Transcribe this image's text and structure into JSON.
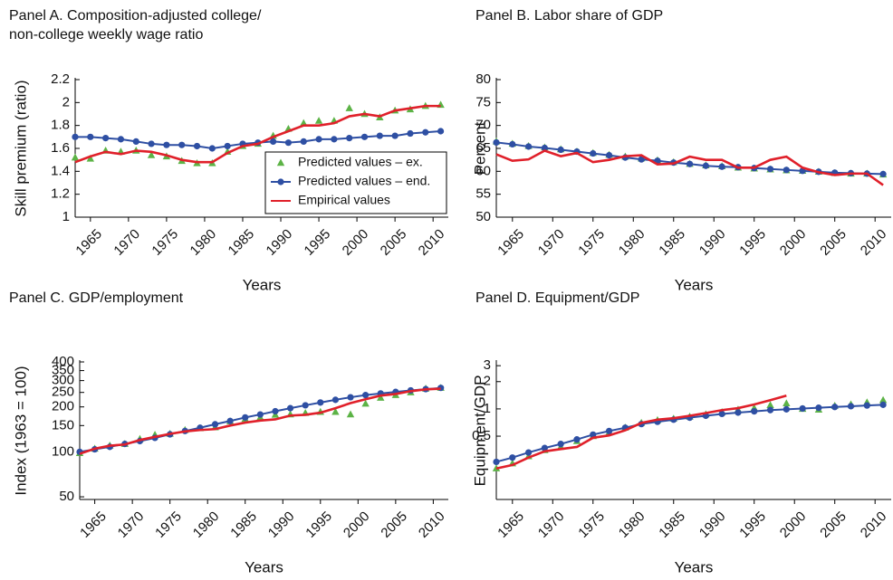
{
  "chart_data": [
    {
      "type": "line",
      "title": [
        "Panel A. Composition-adjusted college/",
        "non-college weekly wage ratio"
      ],
      "ylabel": "Skill premium (ratio)",
      "xlabel": "Years",
      "x": [
        1963,
        1965,
        1967,
        1969,
        1971,
        1973,
        1975,
        1977,
        1979,
        1981,
        1983,
        1985,
        1987,
        1989,
        1991,
        1993,
        1995,
        1997,
        1999,
        2001,
        2003,
        2005,
        2007,
        2009,
        2011
      ],
      "xlim": [
        1963,
        2012
      ],
      "xticks": [
        1965,
        1970,
        1975,
        1980,
        1985,
        1990,
        1995,
        2000,
        2005,
        2010
      ],
      "ylim": [
        1,
        2.2
      ],
      "yticks": [
        1,
        1.2,
        1.4,
        1.6,
        1.8,
        2,
        2.2
      ],
      "log_y": false,
      "legend": "lower-right",
      "series": [
        {
          "name": "Predicted values – ex.",
          "color": "#5cb346",
          "marker": "triangle",
          "line": false,
          "values": [
            1.52,
            1.51,
            1.58,
            1.57,
            1.58,
            1.54,
            1.53,
            1.49,
            1.47,
            1.47,
            1.57,
            1.62,
            1.64,
            1.71,
            1.77,
            1.82,
            1.84,
            1.84,
            1.95,
            1.9,
            1.87,
            1.93,
            1.94,
            1.97,
            1.98
          ]
        },
        {
          "name": "Predicted values – end.",
          "color": "#2e4fa3",
          "marker": "circle",
          "line": true,
          "values": [
            1.7,
            1.7,
            1.69,
            1.68,
            1.66,
            1.64,
            1.63,
            1.63,
            1.62,
            1.6,
            1.62,
            1.64,
            1.65,
            1.66,
            1.65,
            1.66,
            1.68,
            1.68,
            1.69,
            1.7,
            1.71,
            1.71,
            1.73,
            1.74,
            1.75
          ]
        },
        {
          "name": "Empirical values",
          "color": "#e0202a",
          "marker": "none",
          "line": true,
          "values": [
            1.48,
            1.53,
            1.57,
            1.55,
            1.58,
            1.57,
            1.54,
            1.5,
            1.48,
            1.48,
            1.56,
            1.62,
            1.64,
            1.7,
            1.75,
            1.8,
            1.8,
            1.82,
            1.88,
            1.9,
            1.88,
            1.93,
            1.95,
            1.97,
            1.97
          ]
        }
      ]
    },
    {
      "type": "line",
      "title": [
        "Panel B. Labor share of GDP"
      ],
      "ylabel": "Percent",
      "xlabel": "Years",
      "x": [
        1963,
        1965,
        1967,
        1969,
        1971,
        1973,
        1975,
        1977,
        1979,
        1981,
        1983,
        1985,
        1987,
        1989,
        1991,
        1993,
        1995,
        1997,
        1999,
        2001,
        2003,
        2005,
        2007,
        2009,
        2011
      ],
      "xlim": [
        1963,
        2012
      ],
      "xticks": [
        1965,
        1970,
        1975,
        1980,
        1985,
        1990,
        1995,
        2000,
        2005,
        2010
      ],
      "ylim": [
        50,
        80
      ],
      "yticks": [
        50,
        55,
        60,
        65,
        70,
        75,
        80
      ],
      "log_y": false,
      "series": [
        {
          "color": "#5cb346",
          "marker": "triangle",
          "line": false,
          "values": [
            66.5,
            66.0,
            65.5,
            65.2,
            64.8,
            64.3,
            64.0,
            63.6,
            63.2,
            62.8,
            62.4,
            62.0,
            61.6,
            61.3,
            61.1,
            60.8,
            60.6,
            60.4,
            60.2,
            60.1,
            59.9,
            59.6,
            59.5,
            59.5,
            59.3
          ]
        },
        {
          "color": "#2e4fa3",
          "marker": "circle",
          "line": true,
          "values": [
            66.3,
            65.9,
            65.4,
            65.1,
            64.7,
            64.3,
            63.9,
            63.5,
            63.0,
            62.6,
            62.3,
            61.9,
            61.6,
            61.2,
            61.0,
            60.9,
            60.7,
            60.5,
            60.3,
            60.1,
            59.9,
            59.7,
            59.6,
            59.5,
            59.4
          ]
        },
        {
          "color": "#e0202a",
          "marker": "none",
          "line": true,
          "values": [
            63.7,
            62.3,
            62.6,
            64.5,
            63.3,
            64.0,
            62.0,
            62.5,
            63.3,
            63.5,
            61.5,
            61.7,
            63.2,
            62.5,
            62.5,
            60.8,
            60.8,
            62.5,
            63.2,
            60.8,
            59.8,
            59.2,
            59.5,
            59.5,
            57.0
          ]
        }
      ]
    },
    {
      "type": "line",
      "title": [
        "Panel C. GDP/employment"
      ],
      "ylabel": "Index (1963 = 100)",
      "xlabel": "Years",
      "x": [
        1963,
        1965,
        1967,
        1969,
        1971,
        1973,
        1975,
        1977,
        1979,
        1981,
        1983,
        1985,
        1987,
        1989,
        1991,
        1993,
        1995,
        1997,
        1999,
        2001,
        2003,
        2005,
        2007,
        2009,
        2011
      ],
      "xlim": [
        1963,
        2012
      ],
      "xticks": [
        1965,
        1970,
        1975,
        1980,
        1985,
        1990,
        1995,
        2000,
        2005,
        2010
      ],
      "ylim": [
        48,
        400
      ],
      "yticks": [
        50,
        100,
        150,
        200,
        250,
        300,
        350,
        400
      ],
      "log_y": true,
      "series": [
        {
          "color": "#5cb346",
          "marker": "triangle",
          "line": false,
          "values": [
            98,
            105,
            110,
            113,
            122,
            130,
            132,
            140,
            144,
            146,
            160,
            166,
            170,
            177,
            178,
            182,
            185,
            185,
            178,
            210,
            230,
            240,
            250,
            265,
            268
          ]
        },
        {
          "color": "#2e4fa3",
          "marker": "circle",
          "line": true,
          "values": [
            100,
            104,
            108,
            113,
            118,
            124,
            131,
            138,
            145,
            153,
            161,
            170,
            178,
            187,
            196,
            205,
            214,
            223,
            232,
            240,
            246,
            252,
            258,
            263,
            268
          ]
        },
        {
          "color": "#e0202a",
          "marker": "none",
          "line": true,
          "values": [
            97,
            105,
            110,
            112,
            120,
            126,
            132,
            137,
            140,
            142,
            150,
            157,
            162,
            165,
            175,
            177,
            183,
            196,
            212,
            225,
            238,
            244,
            255,
            262,
            265
          ]
        }
      ]
    },
    {
      "type": "line",
      "title": [
        "Panel D. Equipment/GDP"
      ],
      "ylabel": "Equipment/GDP",
      "xlabel": "Years",
      "x": [
        1963,
        1965,
        1967,
        1969,
        1971,
        1973,
        1975,
        1977,
        1979,
        1981,
        1983,
        1985,
        1987,
        1989,
        1991,
        1993,
        1995,
        1997,
        1999,
        2001,
        2003,
        2005,
        2007,
        2009,
        2011
      ],
      "xlim": [
        1963,
        2012
      ],
      "xticks": [
        1965,
        1970,
        1975,
        1980,
        1985,
        1990,
        1995,
        2000,
        2005,
        2010
      ],
      "ylim": [
        0.1,
        3.3
      ],
      "yticks": [
        0.5,
        1,
        2,
        3
      ],
      "log_y": true,
      "series": [
        {
          "color": "#5cb346",
          "marker": "triangle",
          "line": false,
          "values": [
            0.22,
            0.25,
            0.3,
            0.35,
            0.38,
            0.44,
            0.5,
            0.55,
            0.62,
            0.7,
            0.75,
            0.78,
            0.82,
            0.87,
            0.92,
            0.98,
            1.02,
            1.1,
            1.15,
            1.0,
            0.98,
            1.08,
            1.12,
            1.18,
            1.25
          ]
        },
        {
          "color": "#2e4fa3",
          "marker": "circle",
          "line": true,
          "values": [
            0.26,
            0.29,
            0.33,
            0.37,
            0.41,
            0.46,
            0.52,
            0.57,
            0.62,
            0.68,
            0.72,
            0.76,
            0.8,
            0.84,
            0.88,
            0.91,
            0.94,
            0.97,
            0.99,
            1.01,
            1.03,
            1.05,
            1.07,
            1.09,
            1.11
          ]
        },
        {
          "color": "#e0202a",
          "marker": "none",
          "line": true,
          "values": [
            0.22,
            0.24,
            0.29,
            0.34,
            0.36,
            0.38,
            0.48,
            0.51,
            0.58,
            0.7,
            0.76,
            0.79,
            0.84,
            0.9,
            0.97,
            1.02,
            1.12,
            1.25,
            1.4,
            null,
            null,
            null,
            null,
            null,
            null
          ]
        }
      ]
    }
  ]
}
